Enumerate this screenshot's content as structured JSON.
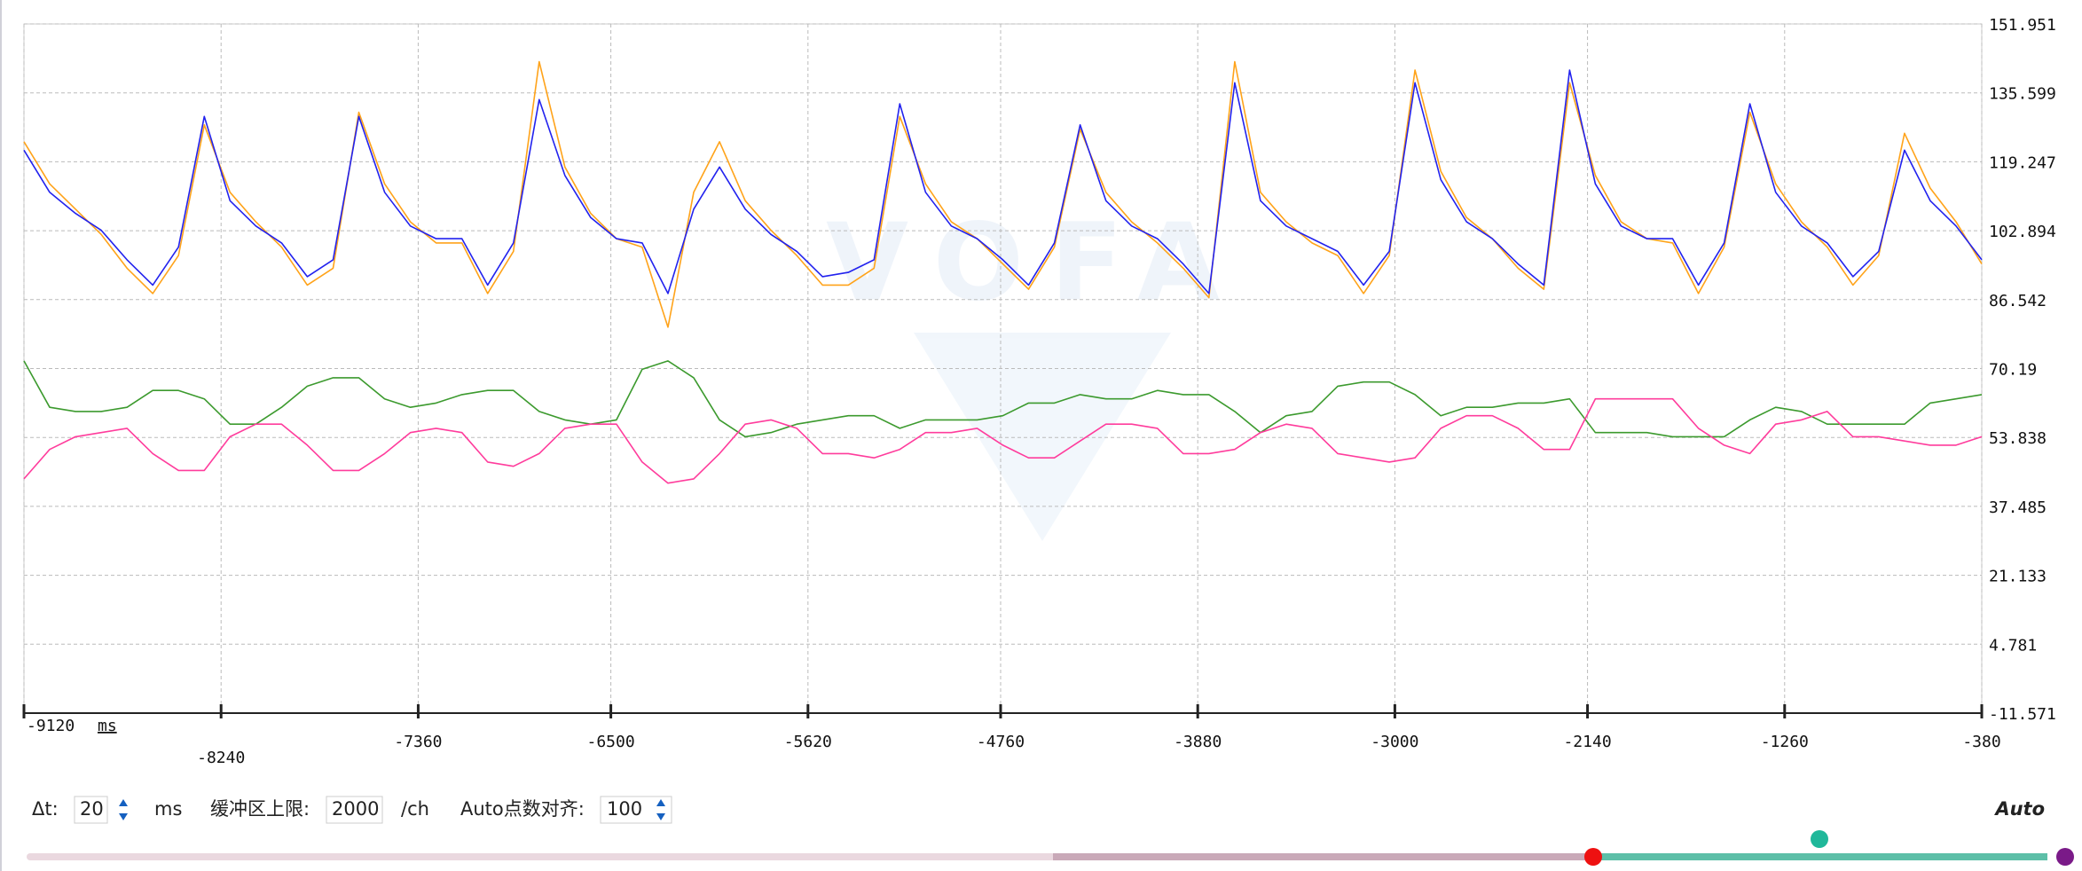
{
  "chart_data": {
    "type": "line",
    "x_unit": "ms",
    "x": [
      -9120,
      -9005,
      -8890,
      -8775,
      -8660,
      -8545,
      -8430,
      -8315,
      -8200,
      -8085,
      -7970,
      -7855,
      -7740,
      -7625,
      -7510,
      -7395,
      -7280,
      -7165,
      -7050,
      -6935,
      -6820,
      -6705,
      -6590,
      -6475,
      -6360,
      -6245,
      -6130,
      -6015,
      -5900,
      -5785,
      -5670,
      -5555,
      -5440,
      -5325,
      -5210,
      -5095,
      -4980,
      -4865,
      -4750,
      -4635,
      -4520,
      -4405,
      -4290,
      -4175,
      -4060,
      -3945,
      -3830,
      -3715,
      -3600,
      -3485,
      -3370,
      -3255,
      -3140,
      -3025,
      -2910,
      -2795,
      -2680,
      -2565,
      -2450,
      -2335,
      -2220,
      -2105,
      -1990,
      -1875,
      -1760,
      -1645,
      -1530,
      -1415,
      -1300,
      -1185,
      -1070,
      -955,
      -840,
      -725,
      -610,
      -495,
      -380
    ],
    "series": [
      {
        "color": "#ffa31a",
        "values": [
          124,
          114,
          108,
          102,
          94,
          88,
          97,
          128,
          112,
          105,
          99,
          90,
          94,
          131,
          114,
          105,
          100,
          100,
          88,
          98,
          143,
          118,
          107,
          101,
          99,
          80,
          112,
          124,
          110,
          103,
          97,
          90,
          90,
          94,
          130,
          114,
          105,
          101,
          95,
          89,
          99,
          127,
          112,
          105,
          100,
          94,
          87,
          143,
          112,
          105,
          100,
          97,
          88,
          97,
          141,
          117,
          106,
          101,
          94,
          89,
          138,
          116,
          105,
          101,
          100,
          88,
          99,
          131,
          114,
          105,
          99,
          90,
          97,
          126,
          113,
          105,
          95
        ]
      },
      {
        "color": "#2222ee",
        "values": [
          122,
          112,
          107,
          103,
          96,
          90,
          99,
          130,
          110,
          104,
          100,
          92,
          96,
          130,
          112,
          104,
          101,
          101,
          90,
          100,
          134,
          116,
          106,
          101,
          100,
          88,
          108,
          118,
          108,
          102,
          98,
          92,
          93,
          96,
          133,
          112,
          104,
          101,
          96,
          90,
          100,
          128,
          110,
          104,
          101,
          95,
          88,
          138,
          110,
          104,
          101,
          98,
          90,
          98,
          138,
          115,
          105,
          101,
          95,
          90,
          141,
          114,
          104,
          101,
          101,
          90,
          100,
          133,
          112,
          104,
          100,
          92,
          98,
          122,
          110,
          104,
          96
        ]
      },
      {
        "color": "#3c9a2e",
        "values": [
          72,
          61,
          60,
          60,
          61,
          65,
          65,
          63,
          57,
          57,
          61,
          66,
          68,
          68,
          63,
          61,
          62,
          64,
          65,
          65,
          60,
          58,
          57,
          58,
          70,
          72,
          68,
          58,
          54,
          55,
          57,
          58,
          59,
          59,
          56,
          58,
          58,
          58,
          59,
          62,
          62,
          64,
          63,
          63,
          65,
          64,
          64,
          60,
          55,
          59,
          60,
          66,
          67,
          67,
          64,
          59,
          61,
          61,
          62,
          62,
          63,
          55,
          55,
          55,
          54,
          54,
          54,
          58,
          61,
          60,
          57,
          57,
          57,
          57,
          62,
          63,
          64
        ]
      },
      {
        "color": "#ff3c9c",
        "values": [
          44,
          51,
          54,
          55,
          56,
          50,
          46,
          46,
          54,
          57,
          57,
          52,
          46,
          46,
          50,
          55,
          56,
          55,
          48,
          47,
          50,
          56,
          57,
          57,
          48,
          43,
          44,
          50,
          57,
          58,
          56,
          50,
          50,
          49,
          51,
          55,
          55,
          56,
          52,
          49,
          49,
          53,
          57,
          57,
          56,
          50,
          50,
          51,
          55,
          57,
          56,
          50,
          49,
          48,
          49,
          56,
          59,
          59,
          56,
          51,
          51,
          63,
          63,
          63,
          63,
          56,
          52,
          50,
          57,
          58,
          60,
          54,
          54,
          53,
          52,
          52,
          54
        ]
      }
    ],
    "xlim": [
      -9120,
      -380
    ],
    "xticks": [
      -9120,
      -8240,
      -7360,
      -6500,
      -5620,
      -4760,
      -3880,
      -3000,
      -2140,
      -1260,
      -380
    ],
    "ylim": [
      -11.571,
      151.951
    ],
    "yticks": [
      151.951,
      135.599,
      119.247,
      102.894,
      86.542,
      70.19,
      53.838,
      37.485,
      21.133,
      4.781,
      -11.571
    ],
    "grid": true
  },
  "watermark": "VOFA",
  "controls": {
    "dt_label": "Δt:",
    "dt_value": 20,
    "dt_unit": "ms",
    "buffer_label": "缓冲区上限:",
    "buffer_value": 2000,
    "buffer_unit": "/ch",
    "align_label": "Auto点数对齐:",
    "align_value": 100,
    "mode": "Auto"
  }
}
